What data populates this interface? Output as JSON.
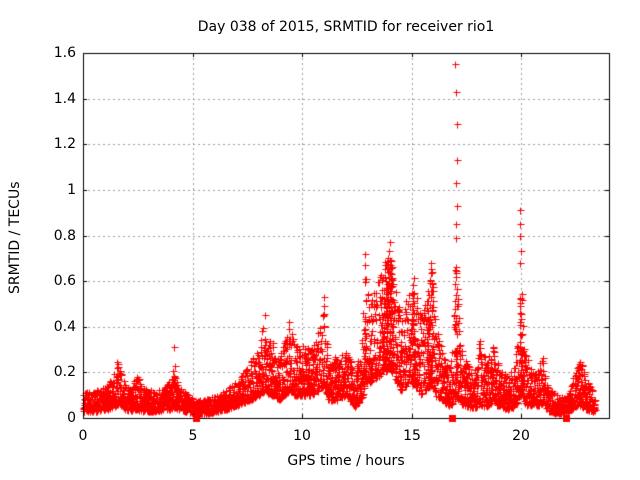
{
  "chart_data": {
    "type": "scatter",
    "title": "Day 038 of 2015, SRMTID for receiver rio1",
    "xlabel": "GPS time / hours",
    "ylabel": "SRMTID / TECUs",
    "xlim": [
      0,
      24
    ],
    "ylim": [
      0,
      1.6
    ],
    "grid": true,
    "legend": "none",
    "marker": "plus",
    "marker_color": "#ff0000",
    "xticks": [
      {
        "v": 0,
        "label": "0"
      },
      {
        "v": 5,
        "label": "5"
      },
      {
        "v": 10,
        "label": "10"
      },
      {
        "v": 15,
        "label": "15"
      },
      {
        "v": 20,
        "label": "20"
      }
    ],
    "yticks": [
      {
        "v": 0,
        "label": "0"
      },
      {
        "v": 0.2,
        "label": "0.2"
      },
      {
        "v": 0.4,
        "label": "0.4"
      },
      {
        "v": 0.6,
        "label": "0.6"
      },
      {
        "v": 0.8,
        "label": "0.8"
      },
      {
        "v": 1,
        "label": "1"
      },
      {
        "v": 1.2,
        "label": "1.2"
      },
      {
        "v": 1.4,
        "label": "1.4"
      },
      {
        "v": 1.6,
        "label": "1.6"
      }
    ],
    "x_data_end": 23.35,
    "points_per_hour": 110,
    "value_skew": 1.6,
    "dense_band_threshold": 0.45,
    "envelope": [
      [
        0,
        0.03,
        0.11
      ],
      [
        0.6,
        0.03,
        0.12
      ],
      [
        1.1,
        0.04,
        0.15
      ],
      [
        1.45,
        0.05,
        0.2
      ],
      [
        1.6,
        0.06,
        0.27
      ],
      [
        1.8,
        0.05,
        0.17
      ],
      [
        2.1,
        0.03,
        0.12
      ],
      [
        2.45,
        0.04,
        0.19
      ],
      [
        2.75,
        0.03,
        0.13
      ],
      [
        3.3,
        0.03,
        0.12
      ],
      [
        3.8,
        0.04,
        0.14
      ],
      [
        4.05,
        0.04,
        0.2
      ],
      [
        4.15,
        0.05,
        0.29
      ],
      [
        4.3,
        0.04,
        0.15
      ],
      [
        4.7,
        0.03,
        0.11
      ],
      [
        5.15,
        0.02,
        0.08
      ],
      [
        5.6,
        0.02,
        0.09
      ],
      [
        6.1,
        0.03,
        0.1
      ],
      [
        6.6,
        0.04,
        0.13
      ],
      [
        7.1,
        0.06,
        0.17
      ],
      [
        7.6,
        0.08,
        0.24
      ],
      [
        8,
        0.1,
        0.33
      ],
      [
        8.3,
        0.12,
        0.44
      ],
      [
        8.6,
        0.1,
        0.34
      ],
      [
        8.95,
        0.08,
        0.26
      ],
      [
        9.4,
        0.12,
        0.41
      ],
      [
        9.7,
        0.1,
        0.31
      ],
      [
        10,
        0.1,
        0.34
      ],
      [
        10.4,
        0.1,
        0.3
      ],
      [
        10.75,
        0.12,
        0.38
      ],
      [
        11,
        0.14,
        0.48
      ],
      [
        11.2,
        0.08,
        0.28
      ],
      [
        11.6,
        0.08,
        0.26
      ],
      [
        12,
        0.1,
        0.31
      ],
      [
        12.4,
        0.05,
        0.2
      ],
      [
        12.7,
        0.08,
        0.36
      ],
      [
        12.88,
        0.14,
        0.62
      ],
      [
        13.1,
        0.15,
        0.5
      ],
      [
        13.4,
        0.18,
        0.58
      ],
      [
        13.7,
        0.2,
        0.66
      ],
      [
        14,
        0.22,
        0.74
      ],
      [
        14.2,
        0.18,
        0.6
      ],
      [
        14.5,
        0.12,
        0.46
      ],
      [
        14.8,
        0.15,
        0.56
      ],
      [
        15.1,
        0.15,
        0.62
      ],
      [
        15.4,
        0.1,
        0.46
      ],
      [
        15.65,
        0.12,
        0.55
      ],
      [
        15.9,
        0.15,
        0.66
      ],
      [
        16.1,
        0.1,
        0.42
      ],
      [
        16.4,
        0.08,
        0.31
      ],
      [
        16.7,
        0.05,
        0.22
      ],
      [
        16.9,
        0.06,
        0.32
      ],
      [
        17,
        0.1,
        0.74
      ],
      [
        17.12,
        0.08,
        0.52
      ],
      [
        17.3,
        0.06,
        0.3
      ],
      [
        17.55,
        0.05,
        0.24
      ],
      [
        17.85,
        0.04,
        0.2
      ],
      [
        18.1,
        0.06,
        0.36
      ],
      [
        18.4,
        0.05,
        0.25
      ],
      [
        18.7,
        0.07,
        0.33
      ],
      [
        19,
        0.05,
        0.22
      ],
      [
        19.4,
        0.04,
        0.18
      ],
      [
        19.7,
        0.05,
        0.24
      ],
      [
        19.88,
        0.08,
        0.4
      ],
      [
        19.95,
        0.1,
        0.62
      ],
      [
        20.05,
        0.08,
        0.5
      ],
      [
        20.2,
        0.06,
        0.3
      ],
      [
        20.45,
        0.05,
        0.22
      ],
      [
        20.75,
        0.05,
        0.21
      ],
      [
        21,
        0.06,
        0.28
      ],
      [
        21.25,
        0.03,
        0.13
      ],
      [
        21.7,
        0.02,
        0.1
      ],
      [
        22.1,
        0.02,
        0.09
      ],
      [
        22.4,
        0.05,
        0.2
      ],
      [
        22.65,
        0.06,
        0.28
      ],
      [
        22.95,
        0.04,
        0.17
      ],
      [
        23.2,
        0.03,
        0.13
      ],
      [
        23.35,
        0.03,
        0.1
      ]
    ],
    "outlier_points": [
      [
        16.99,
        1.55
      ],
      [
        17.02,
        1.43
      ],
      [
        17.05,
        1.29
      ],
      [
        17.07,
        1.13
      ],
      [
        17.03,
        1.03
      ],
      [
        17.06,
        0.93
      ],
      [
        17,
        0.85
      ],
      [
        17.04,
        0.79
      ],
      [
        19.93,
        0.91
      ],
      [
        19.96,
        0.85
      ],
      [
        19.94,
        0.8
      ],
      [
        19.97,
        0.73
      ],
      [
        19.92,
        0.68
      ],
      [
        14.02,
        0.77
      ],
      [
        13.97,
        0.73
      ],
      [
        12.85,
        0.72
      ],
      [
        12.88,
        0.67
      ],
      [
        10.98,
        0.53
      ],
      [
        11.01,
        0.49
      ],
      [
        10.96,
        0.45
      ],
      [
        15.88,
        0.68
      ],
      [
        15.92,
        0.64
      ],
      [
        4.15,
        0.31
      ],
      [
        8.32,
        0.45
      ],
      [
        9.42,
        0.42
      ]
    ],
    "notable_peaks": [
      [
        1.6,
        0.26
      ],
      [
        4.15,
        0.31
      ],
      [
        8.3,
        0.44
      ],
      [
        9.4,
        0.42
      ],
      [
        11,
        0.53
      ],
      [
        12.85,
        0.72
      ],
      [
        14,
        0.77
      ],
      [
        15.1,
        0.62
      ],
      [
        15.9,
        0.68
      ],
      [
        17,
        1.55
      ],
      [
        19.93,
        0.91
      ],
      [
        21,
        0.28
      ],
      [
        22.65,
        0.28
      ]
    ],
    "axis_marker_squares_hours": [
      5.15,
      16.85,
      22.05
    ],
    "axis_marker_shape": "filled-square",
    "axis_marker_color": "#ff0000"
  },
  "colors": {
    "marker": "#ff0000",
    "grid": "#a0a0a0",
    "border": "#000000",
    "background": "#ffffff",
    "text": "#000000"
  }
}
